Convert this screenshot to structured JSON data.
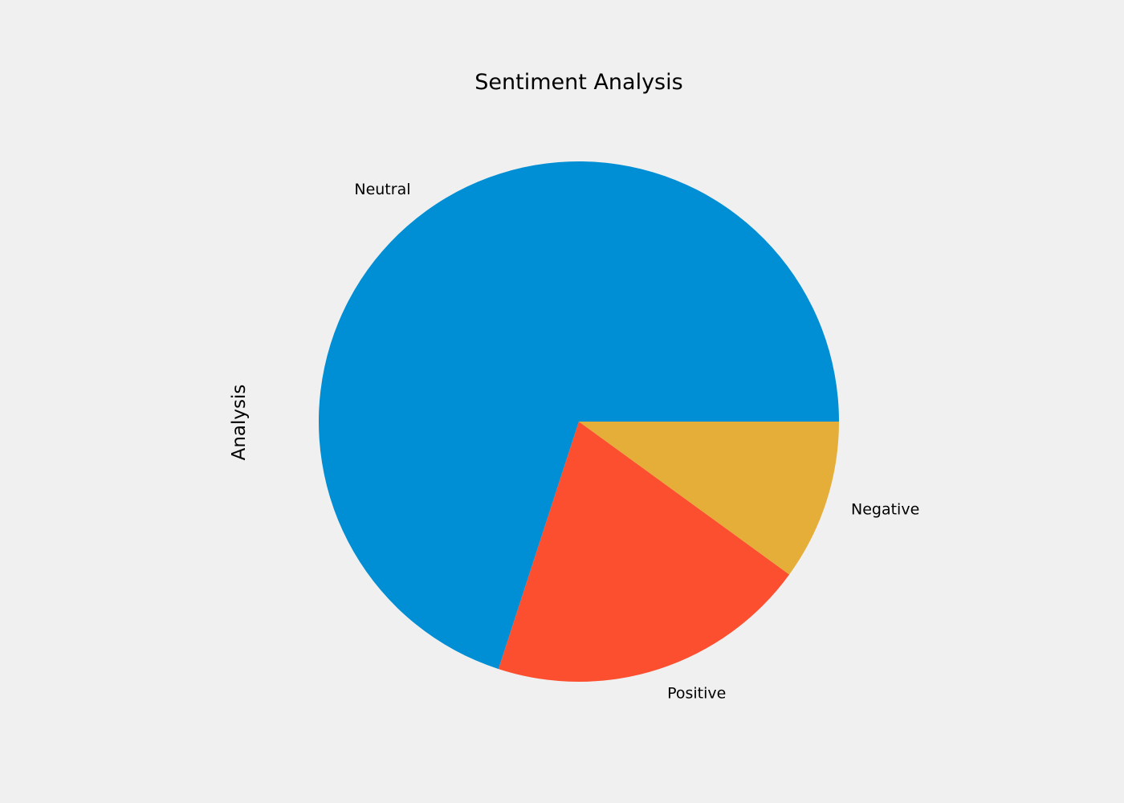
{
  "chart_data": {
    "type": "pie",
    "title": "Sentiment Analysis",
    "ylabel": "Analysis",
    "labels": [
      "Neutral",
      "Positive",
      "Negative"
    ],
    "values": [
      70.0,
      20.0,
      10.0
    ],
    "colors": [
      "#008fd5",
      "#fc4f30",
      "#e5ae38"
    ],
    "start_angle_deg": 0,
    "direction": "counterclockwise",
    "legend": "none",
    "grid": false
  }
}
